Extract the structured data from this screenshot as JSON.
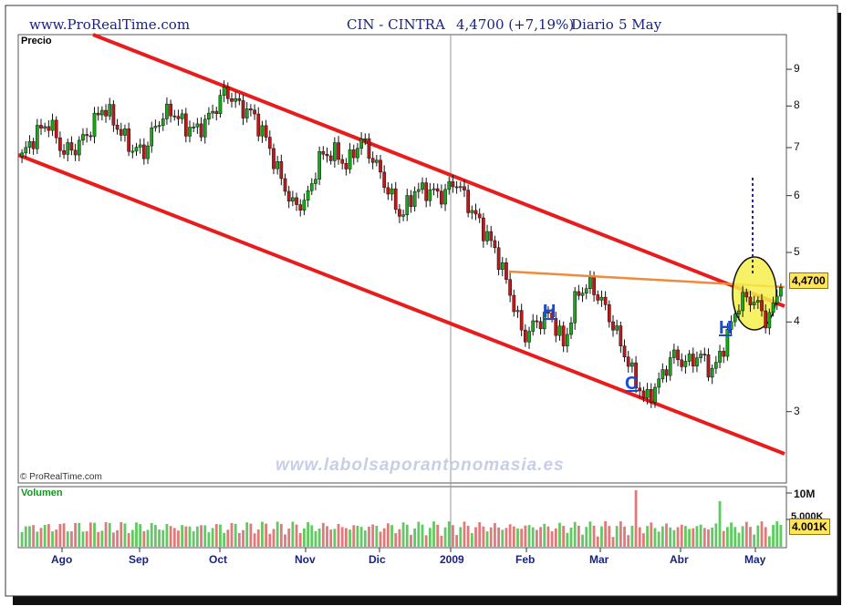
{
  "header": {
    "site": "www.ProRealTime.com",
    "symbol": "CIN - CINTRA",
    "price_change": "4,4700 (+7,19%)",
    "period": "Diario",
    "date": "5 May"
  },
  "labels": {
    "price": "Precio",
    "volume": "Volumen",
    "copyright": "© ProRealTime.com",
    "watermark": "www.labolsaporantonomasia.es"
  },
  "price_box": "4,4700",
  "volume_box": "4.001K",
  "volume_tick_max": "10M",
  "volume_tick_mid": "5.000K",
  "price_ticks": [
    "9",
    "8",
    "7",
    "6",
    "5",
    "4",
    "3"
  ],
  "months": [
    "Ago",
    "Sep",
    "Oct",
    "Nov",
    "Dic",
    "2009",
    "Feb",
    "Mar",
    "Abr",
    "May"
  ],
  "annotations": [
    "H",
    "C",
    "H"
  ],
  "colors": {
    "up": "#18a818",
    "down": "#c01818",
    "channel": "#e81c1c",
    "neckline": "#f08a3c",
    "highlight": "#f4ee4a",
    "vol_up": "#5fca5f",
    "vol_down": "#e07a7a",
    "header_text": "#1a237e"
  },
  "chart_data": {
    "type": "candlestick",
    "scale": "log",
    "ylim": [
      2.4,
      10
    ],
    "series": [
      {
        "values": [
          6.8,
          7.3,
          7.6,
          6.9,
          7.0,
          7.4,
          8.0,
          7.5,
          7.0,
          6.9,
          7.6,
          7.9,
          7.5,
          7.4,
          7.8,
          8.4,
          8.0,
          7.8,
          7.2,
          6.4,
          5.8,
          5.9,
          6.8,
          6.9,
          6.6,
          7.2,
          6.7,
          6.1,
          5.6,
          6.1,
          6.1,
          6.0,
          6.3,
          5.8,
          5.4,
          5.0,
          4.4,
          3.8,
          4.0,
          4.1,
          3.7,
          4.4,
          4.5,
          4.2,
          3.8,
          3.4,
          3.1,
          3.3,
          3.6,
          3.5,
          3.6,
          3.4,
          3.8,
          4.3,
          4.3,
          4.0,
          4.47
        ]
      }
    ]
  }
}
